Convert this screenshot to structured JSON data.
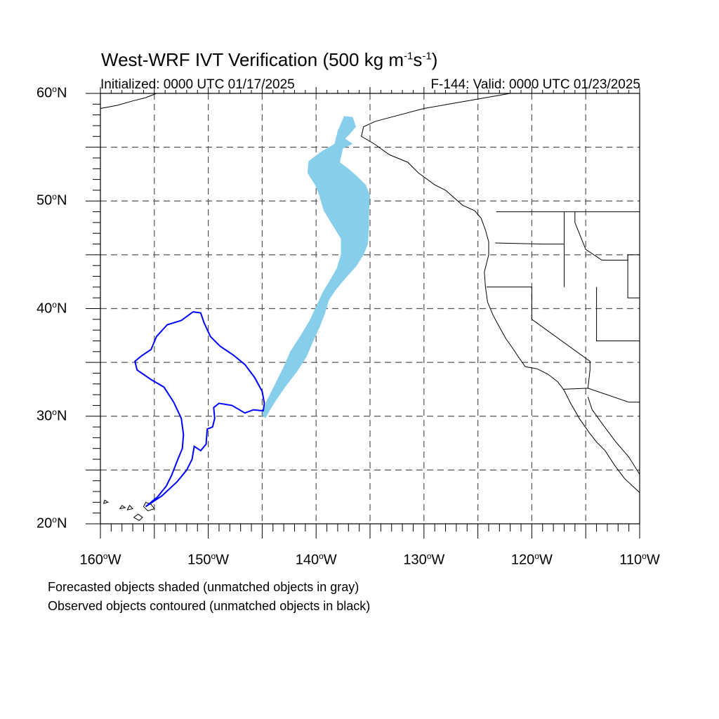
{
  "title": {
    "prefix": "West-WRF IVT Verification (500 kg m",
    "sup1": "-1",
    "mid": "s",
    "sup2": "-1",
    "suffix": ")"
  },
  "initialized": "Initialized: 0000 UTC 01/17/2025",
  "valid": "F-144: Valid: 0000 UTC 01/23/2025",
  "lat_labels": [
    "60oN",
    "50oN",
    "40oN",
    "30oN",
    "20oN"
  ],
  "lon_labels": [
    "160oW",
    "150oW",
    "140oW",
    "130oW",
    "120oW",
    "110oW"
  ],
  "legend": {
    "forecast": "Forecasted objects shaded (unmatched objects in gray)",
    "observed": "Observed objects contoured (unmatched objects in black)"
  },
  "map": {
    "lon_range": [
      -160,
      -110
    ],
    "lat_range": [
      20,
      60
    ],
    "gridline_spacing_deg": 5,
    "colors": {
      "forecast_fill": "#87CEEB",
      "observed_contour": "#0000FF",
      "coastline": "#000000",
      "gridline": "#555555"
    }
  },
  "objects": {
    "forecast": {
      "label": "forecast object",
      "outline": [
        [
          -137.4,
          57.9
        ],
        [
          -136.6,
          57.8
        ],
        [
          -136.3,
          56.9
        ],
        [
          -136.9,
          56.2
        ],
        [
          -137.3,
          55.8
        ],
        [
          -136.6,
          55.3
        ],
        [
          -137.5,
          54.9
        ],
        [
          -137.8,
          53.6
        ],
        [
          -137.0,
          53.0
        ],
        [
          -136.2,
          52.3
        ],
        [
          -135.4,
          51.5
        ],
        [
          -135.0,
          50.5
        ],
        [
          -135.1,
          49.0
        ],
        [
          -135.1,
          47.5
        ],
        [
          -135.2,
          46.0
        ],
        [
          -135.6,
          45.0
        ],
        [
          -136.3,
          43.9
        ],
        [
          -137.3,
          42.8
        ],
        [
          -138.2,
          41.7
        ],
        [
          -138.8,
          40.8
        ],
        [
          -139.2,
          39.5
        ],
        [
          -139.7,
          38.2
        ],
        [
          -140.3,
          36.9
        ],
        [
          -140.9,
          35.5
        ],
        [
          -141.8,
          34.1
        ],
        [
          -142.8,
          32.8
        ],
        [
          -143.7,
          31.5
        ],
        [
          -144.2,
          30.7
        ],
        [
          -144.7,
          29.8
        ],
        [
          -145.0,
          30.1
        ],
        [
          -144.6,
          31.4
        ],
        [
          -144.0,
          32.6
        ],
        [
          -143.5,
          33.6
        ],
        [
          -143.0,
          34.6
        ],
        [
          -142.4,
          36.0
        ],
        [
          -141.5,
          37.4
        ],
        [
          -140.6,
          38.9
        ],
        [
          -139.9,
          40.4
        ],
        [
          -139.4,
          41.5
        ],
        [
          -138.8,
          42.5
        ],
        [
          -138.1,
          43.7
        ],
        [
          -137.7,
          45.0
        ],
        [
          -137.7,
          46.5
        ],
        [
          -138.5,
          47.8
        ],
        [
          -139.3,
          49.1
        ],
        [
          -139.7,
          50.5
        ],
        [
          -140.1,
          51.5
        ],
        [
          -140.8,
          52.6
        ],
        [
          -140.7,
          53.7
        ],
        [
          -139.5,
          54.6
        ],
        [
          -138.3,
          55.3
        ],
        [
          -138.0,
          56.5
        ]
      ]
    },
    "observed": {
      "label": "observed object",
      "outline": [
        [
          -151.4,
          39.7
        ],
        [
          -150.7,
          39.6
        ],
        [
          -150.4,
          38.7
        ],
        [
          -149.8,
          37.4
        ],
        [
          -148.9,
          36.5
        ],
        [
          -147.7,
          35.7
        ],
        [
          -146.6,
          34.8
        ],
        [
          -145.7,
          33.6
        ],
        [
          -145.0,
          32.3
        ],
        [
          -144.8,
          31.2
        ],
        [
          -144.9,
          30.5
        ],
        [
          -145.8,
          30.6
        ],
        [
          -146.6,
          30.3
        ],
        [
          -147.8,
          31.0
        ],
        [
          -149.0,
          31.2
        ],
        [
          -149.5,
          30.8
        ],
        [
          -149.4,
          29.8
        ],
        [
          -149.6,
          29.0
        ],
        [
          -150.1,
          28.8
        ],
        [
          -150.2,
          27.4
        ],
        [
          -150.7,
          26.8
        ],
        [
          -151.3,
          27.2
        ],
        [
          -151.5,
          26.0
        ],
        [
          -152.0,
          25.0
        ],
        [
          -152.9,
          23.9
        ],
        [
          -154.3,
          22.6
        ],
        [
          -155.8,
          21.6
        ],
        [
          -154.7,
          22.5
        ],
        [
          -153.9,
          23.5
        ],
        [
          -153.4,
          24.5
        ],
        [
          -152.9,
          25.8
        ],
        [
          -152.4,
          27.0
        ],
        [
          -152.3,
          28.3
        ],
        [
          -152.5,
          29.8
        ],
        [
          -153.2,
          31.3
        ],
        [
          -154.1,
          32.7
        ],
        [
          -155.3,
          33.4
        ],
        [
          -156.6,
          34.3
        ],
        [
          -156.8,
          35.1
        ],
        [
          -156.2,
          35.6
        ],
        [
          -155.3,
          36.2
        ],
        [
          -154.8,
          37.4
        ],
        [
          -153.8,
          38.5
        ],
        [
          -152.5,
          38.9
        ]
      ]
    }
  },
  "coastlines": {
    "north_america": [
      [
        -122.0,
        60.0
      ],
      [
        -126.0,
        59.3
      ],
      [
        -130.0,
        58.6
      ],
      [
        -133.0,
        57.8
      ],
      [
        -134.5,
        57.4
      ],
      [
        -135.6,
        56.9
      ],
      [
        -135.8,
        56.0
      ],
      [
        -134.6,
        55.3
      ],
      [
        -133.2,
        54.3
      ],
      [
        -131.5,
        53.6
      ],
      [
        -130.5,
        52.6
      ],
      [
        -129.0,
        51.5
      ],
      [
        -128.0,
        51.0
      ],
      [
        -127.2,
        50.3
      ],
      [
        -126.4,
        49.6
      ],
      [
        -125.3,
        49.1
      ],
      [
        -124.7,
        48.4
      ],
      [
        -124.3,
        47.3
      ],
      [
        -124.0,
        46.2
      ],
      [
        -124.0,
        45.0
      ],
      [
        -124.4,
        43.4
      ],
      [
        -124.3,
        42.0
      ],
      [
        -124.1,
        40.6
      ],
      [
        -123.6,
        39.4
      ],
      [
        -122.9,
        38.1
      ],
      [
        -122.4,
        37.2
      ],
      [
        -121.9,
        36.5
      ],
      [
        -121.1,
        35.3
      ],
      [
        -120.6,
        34.6
      ],
      [
        -119.5,
        34.4
      ],
      [
        -118.5,
        33.9
      ],
      [
        -117.6,
        33.2
      ],
      [
        -117.0,
        32.4
      ],
      [
        -116.4,
        31.2
      ],
      [
        -115.6,
        29.8
      ],
      [
        -114.7,
        28.5
      ],
      [
        -114.0,
        27.6
      ],
      [
        -113.2,
        26.8
      ],
      [
        -112.3,
        25.4
      ],
      [
        -111.4,
        24.2
      ],
      [
        -110.0,
        22.9
      ]
    ],
    "gulf_of_california": [
      [
        -114.8,
        31.8
      ],
      [
        -114.4,
        30.6
      ],
      [
        -113.4,
        29.2
      ],
      [
        -112.2,
        27.6
      ],
      [
        -111.0,
        26.2
      ],
      [
        -110.0,
        24.6
      ]
    ],
    "alaska": [
      [
        -160.0,
        58.6
      ],
      [
        -158.4,
        58.9
      ],
      [
        -157.0,
        59.3
      ],
      [
        -155.8,
        59.6
      ],
      [
        -154.8,
        60.0
      ]
    ],
    "hawaii": [
      [
        [
          -155.8,
          22.0
        ],
        [
          -155.3,
          21.8
        ],
        [
          -155.0,
          21.4
        ],
        [
          -155.6,
          21.2
        ],
        [
          -156.0,
          21.6
        ]
      ],
      [
        [
          -156.5,
          20.9
        ],
        [
          -156.1,
          20.6
        ],
        [
          -156.4,
          20.3
        ],
        [
          -156.9,
          20.6
        ]
      ],
      [
        [
          -157.3,
          21.7
        ],
        [
          -157.0,
          21.4
        ],
        [
          -157.5,
          21.3
        ]
      ],
      [
        [
          -158.0,
          21.7
        ],
        [
          -157.7,
          21.5
        ],
        [
          -158.2,
          21.4
        ]
      ],
      [
        [
          -159.6,
          22.2
        ],
        [
          -159.3,
          22.0
        ],
        [
          -159.7,
          21.9
        ]
      ]
    ]
  },
  "borders": [
    [
      [
        -123.3,
        49.0
      ],
      [
        -110.0,
        49.0
      ]
    ],
    [
      [
        -124.2,
        42.0
      ],
      [
        -120.0,
        42.0
      ],
      [
        -120.0,
        39.0
      ],
      [
        -114.6,
        35.1
      ],
      [
        -114.6,
        34.3
      ],
      [
        -114.8,
        32.6
      ]
    ],
    [
      [
        -117.1,
        32.5
      ],
      [
        -114.8,
        32.6
      ],
      [
        -111.0,
        31.3
      ],
      [
        -110.0,
        31.3
      ]
    ],
    [
      [
        -123.4,
        46.1
      ],
      [
        -119.0,
        46.0
      ],
      [
        -117.0,
        46.0
      ]
    ],
    [
      [
        -117.0,
        49.0
      ],
      [
        -117.0,
        44.0
      ],
      [
        -117.0,
        42.0
      ]
    ],
    [
      [
        -116.0,
        49.0
      ],
      [
        -116.0,
        48.0
      ],
      [
        -115.0,
        45.5
      ],
      [
        -113.5,
        44.5
      ],
      [
        -111.1,
        44.5
      ],
      [
        -111.1,
        45.0
      ],
      [
        -110.0,
        45.0
      ]
    ],
    [
      [
        -114.0,
        42.0
      ],
      [
        -114.0,
        37.0
      ],
      [
        -110.0,
        37.0
      ]
    ],
    [
      [
        -111.1,
        45.0
      ],
      [
        -111.1,
        41.0
      ],
      [
        -110.0,
        41.0
      ]
    ]
  ]
}
